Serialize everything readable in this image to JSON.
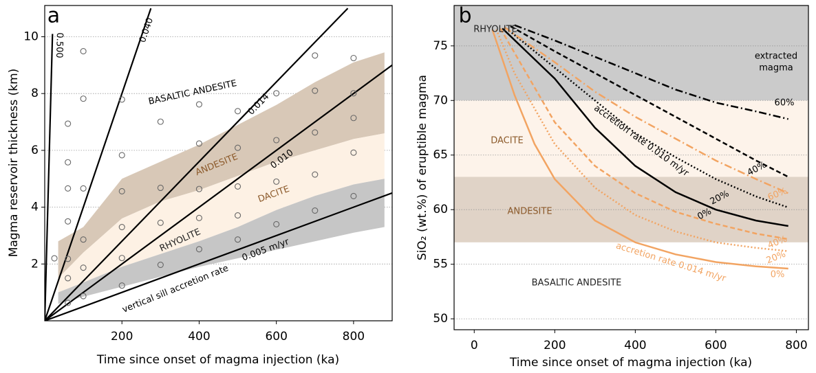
{
  "chart_data": [
    {
      "type": "scatter",
      "panel_label": "a",
      "xlabel": "Time since onset of magma injection (ka)",
      "ylabel": "Magma reservoir thickness (km)",
      "xlim": [
        0,
        900
      ],
      "ylim": [
        0,
        11.1
      ],
      "xticks": [
        200,
        400,
        600,
        800
      ],
      "yticks": [
        2,
        4,
        6,
        8,
        10
      ],
      "grid": true,
      "bands": [
        {
          "name": "ANDESITE",
          "color": "#d8c8b7",
          "label_color": "#8c5a2b",
          "x": [
            35,
            100,
            200,
            300,
            400,
            500,
            600,
            700,
            800,
            880
          ],
          "upper": [
            2.8,
            3.3,
            5.0,
            5.6,
            6.2,
            6.9,
            7.6,
            8.4,
            9.1,
            9.45
          ],
          "lower": [
            1.5,
            2.4,
            3.6,
            4.2,
            4.6,
            5.1,
            5.6,
            6.0,
            6.4,
            6.6
          ]
        },
        {
          "name": "DACITE",
          "color": "#fdf1e4",
          "label_color": "#8c5a2b",
          "x": [
            35,
            100,
            200,
            300,
            400,
            500,
            600,
            700,
            800,
            880
          ],
          "upper": [
            1.5,
            2.4,
            3.6,
            4.2,
            4.6,
            5.1,
            5.6,
            6.0,
            6.4,
            6.6
          ],
          "lower": [
            1.0,
            1.35,
            1.9,
            2.35,
            2.8,
            3.3,
            3.9,
            4.4,
            4.8,
            5.0
          ]
        },
        {
          "name": "RHYOLITE",
          "color": "#c6c6c6",
          "label_color": "#222222",
          "x": [
            35,
            100,
            200,
            300,
            400,
            500,
            600,
            700,
            800,
            880
          ],
          "upper": [
            1.0,
            1.35,
            1.9,
            2.35,
            2.8,
            3.3,
            3.9,
            4.4,
            4.8,
            5.0
          ],
          "lower": [
            0.6,
            0.85,
            1.2,
            1.55,
            1.9,
            2.2,
            2.5,
            2.8,
            3.1,
            3.3
          ]
        }
      ],
      "rate_lines": [
        {
          "name": "0.500",
          "x": [
            0,
            20.2
          ],
          "values": [
            0,
            10.1
          ]
        },
        {
          "name": "0.040",
          "x": [
            0,
            275
          ],
          "values": [
            0,
            11
          ]
        },
        {
          "name": "0.014",
          "x": [
            0,
            785
          ],
          "values": [
            0,
            11
          ]
        },
        {
          "name": "0.010",
          "x": [
            0,
            900
          ],
          "values": [
            0,
            9
          ]
        },
        {
          "name": "0.005 m/yr",
          "x": [
            0,
            900
          ],
          "values": [
            0,
            4.5
          ]
        }
      ],
      "points": {
        "color": "#666666",
        "x": [
          25,
          60,
          60,
          60,
          60,
          60,
          60,
          60,
          100,
          100,
          100,
          100,
          100,
          100,
          200,
          200,
          200,
          200,
          200,
          200,
          300,
          300,
          300,
          300,
          400,
          400,
          400,
          400,
          400,
          500,
          500,
          500,
          500,
          500,
          600,
          600,
          600,
          600,
          700,
          700,
          700,
          700,
          700,
          800,
          800,
          800,
          800,
          800
        ],
        "values": [
          2.2,
          6.94,
          5.58,
          4.66,
          3.5,
          2.18,
          1.5,
          0.63,
          9.49,
          7.82,
          4.66,
          2.86,
          1.87,
          0.87,
          7.79,
          5.83,
          4.56,
          3.3,
          2.21,
          1.24,
          7.01,
          4.68,
          3.45,
          1.97,
          7.62,
          6.24,
          4.64,
          3.62,
          2.52,
          7.38,
          6.09,
          4.73,
          3.71,
          2.86,
          8.01,
          6.36,
          4.9,
          3.4,
          9.34,
          8.1,
          6.63,
          5.15,
          3.88,
          9.25,
          8.01,
          7.14,
          5.92,
          4.39
        ]
      },
      "annotations": [
        "BASALTIC ANDESITE",
        "vertical sill accretion rate"
      ]
    },
    {
      "type": "line",
      "panel_label": "b",
      "xlabel": "Time since onset of magma injection (ka)",
      "ylabel": "SiO₂ (wt.%) of eruptible magma",
      "xlim": [
        -50,
        830
      ],
      "ylim": [
        49,
        78.7
      ],
      "xticks": [
        0,
        200,
        400,
        600,
        800
      ],
      "yticks": [
        50,
        55,
        60,
        65,
        70,
        75
      ],
      "grid": true,
      "zones": [
        {
          "label": "RHYOLITE",
          "lower": 70,
          "upper": 78.7,
          "color": "#cbcbcb",
          "label_color": "#222222"
        },
        {
          "label": "DACITE",
          "lower": 63,
          "upper": 70,
          "color": "#fdf3ea",
          "label_color": "#8c5a2b"
        },
        {
          "label": "ANDESITE",
          "lower": 57,
          "upper": 63,
          "color": "#e0d3c7",
          "label_color": "#8c5a2b"
        },
        {
          "label": "BASALTIC ANDESITE",
          "lower": 49,
          "upper": 57,
          "color": "#ffffff",
          "label_color": "#222222"
        }
      ],
      "series": [
        {
          "name": "0%",
          "color": "#000000",
          "dash": "solid",
          "x": [
            70,
            200,
            300,
            400,
            500,
            600,
            700,
            780
          ],
          "values": [
            76.6,
            72,
            67.5,
            64,
            61.6,
            60,
            59,
            58.5
          ]
        },
        {
          "name": "20%",
          "color": "#000000",
          "dash": "dotted",
          "x": [
            80,
            200,
            300,
            400,
            500,
            600,
            700,
            780
          ],
          "values": [
            76.6,
            73,
            70,
            67,
            64.8,
            62.8,
            61.2,
            60.2
          ]
        },
        {
          "name": "40%",
          "color": "#000000",
          "dash": "dashed",
          "x": [
            90,
            200,
            300,
            400,
            500,
            600,
            700,
            780
          ],
          "values": [
            76.8,
            74.5,
            72.5,
            70.5,
            68.5,
            66.5,
            64.5,
            63
          ]
        },
        {
          "name": "60%",
          "color": "#000000",
          "dash": "dashdot",
          "x": [
            100,
            200,
            300,
            400,
            500,
            600,
            700,
            780
          ],
          "values": [
            76.9,
            75.5,
            74,
            72.5,
            71,
            69.8,
            69,
            68.3
          ]
        },
        {
          "name": "0%",
          "color": "#f2a462",
          "dash": "solid",
          "x": [
            45,
            100,
            150,
            200,
            300,
            400,
            500,
            600,
            700,
            780
          ],
          "values": [
            76.5,
            70.5,
            66,
            62.8,
            59,
            57,
            55.9,
            55.2,
            54.8,
            54.6
          ]
        },
        {
          "name": "20%",
          "color": "#f2a462",
          "dash": "dotted",
          "x": [
            55,
            100,
            200,
            300,
            400,
            500,
            600,
            700,
            780
          ],
          "values": [
            76.5,
            72.5,
            66,
            62,
            59.5,
            58,
            57,
            56.5,
            56.2
          ]
        },
        {
          "name": "40%",
          "color": "#f2a462",
          "dash": "dashed",
          "x": [
            65,
            200,
            300,
            400,
            500,
            600,
            700,
            780
          ],
          "values": [
            76.6,
            68,
            64,
            61.5,
            59.8,
            58.7,
            57.8,
            57.3
          ]
        },
        {
          "name": "60%",
          "color": "#f2a462",
          "dash": "dashdot",
          "x": [
            75,
            200,
            300,
            400,
            500,
            600,
            700,
            780
          ],
          "values": [
            76.7,
            73.5,
            70.8,
            68.5,
            66.5,
            64.5,
            62.8,
            61.5
          ]
        }
      ],
      "annotations": [
        {
          "text": "accretion rate 0.010 m/yr",
          "color": "#000000"
        },
        {
          "text": "accretion rate 0.014 m/yr",
          "color": "#f2a462"
        },
        {
          "text": "extracted",
          "color": "#000000"
        },
        {
          "text": "magma",
          "color": "#000000"
        }
      ]
    }
  ]
}
